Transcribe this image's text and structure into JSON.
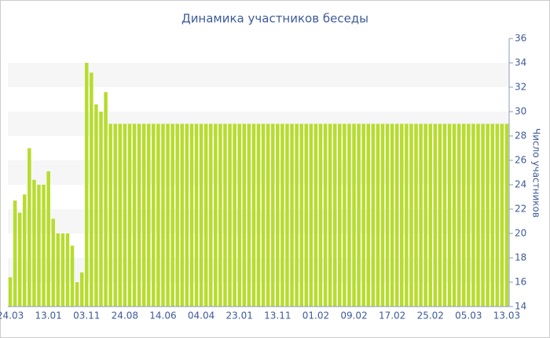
{
  "chart_data": {
    "type": "bar",
    "title": "Динамика участников беседы",
    "y_axis_label": "Число участников",
    "categories": [
      "24.03",
      null,
      null,
      null,
      null,
      null,
      null,
      null,
      "13.01",
      null,
      null,
      null,
      null,
      null,
      null,
      null,
      "03.11",
      null,
      null,
      null,
      null,
      null,
      null,
      null,
      "24.08",
      null,
      null,
      null,
      null,
      null,
      null,
      null,
      "14.06",
      null,
      null,
      null,
      null,
      null,
      null,
      null,
      "04.04",
      null,
      null,
      null,
      null,
      null,
      null,
      null,
      "23.01",
      null,
      null,
      null,
      null,
      null,
      null,
      null,
      "13.11",
      null,
      null,
      null,
      null,
      null,
      null,
      null,
      "01.02",
      null,
      null,
      null,
      null,
      null,
      null,
      null,
      "09.02",
      null,
      null,
      null,
      null,
      null,
      null,
      null,
      "17.02",
      null,
      null,
      null,
      null,
      null,
      null,
      null,
      "25.02",
      null,
      null,
      null,
      null,
      null,
      null,
      null,
      "05.03",
      null,
      null,
      null,
      null,
      null,
      null,
      null,
      "13.03"
    ],
    "values": [
      16.4,
      22.7,
      21.7,
      23.2,
      27,
      24.4,
      24,
      24,
      25.1,
      21.2,
      20,
      20,
      20,
      19,
      16,
      16.8,
      34,
      33.2,
      30.6,
      30,
      31.6,
      29,
      29,
      29,
      29,
      29,
      29,
      29,
      29,
      29,
      29,
      29,
      29,
      29,
      29,
      29,
      29,
      29,
      29,
      29,
      29,
      29,
      29,
      29,
      29,
      29,
      29,
      29,
      29,
      29,
      29,
      29,
      29,
      29,
      29,
      29,
      29,
      29,
      29,
      29,
      29,
      29,
      29,
      29,
      29,
      29,
      29,
      29,
      29,
      29,
      29,
      29,
      29,
      29,
      29,
      29,
      29,
      29,
      29,
      29,
      29,
      29,
      29,
      29,
      29,
      29,
      29,
      29,
      29,
      29,
      29,
      29,
      29,
      29,
      29,
      29,
      29,
      29,
      29,
      29,
      29,
      29,
      29,
      29,
      29
    ],
    "color": "#b7dc2e",
    "ylim": [
      14,
      36
    ],
    "yticks": [
      14,
      16,
      18,
      20,
      22,
      24,
      26,
      28,
      30,
      32,
      34,
      36
    ],
    "grid": true,
    "y_axis_side": "right"
  }
}
